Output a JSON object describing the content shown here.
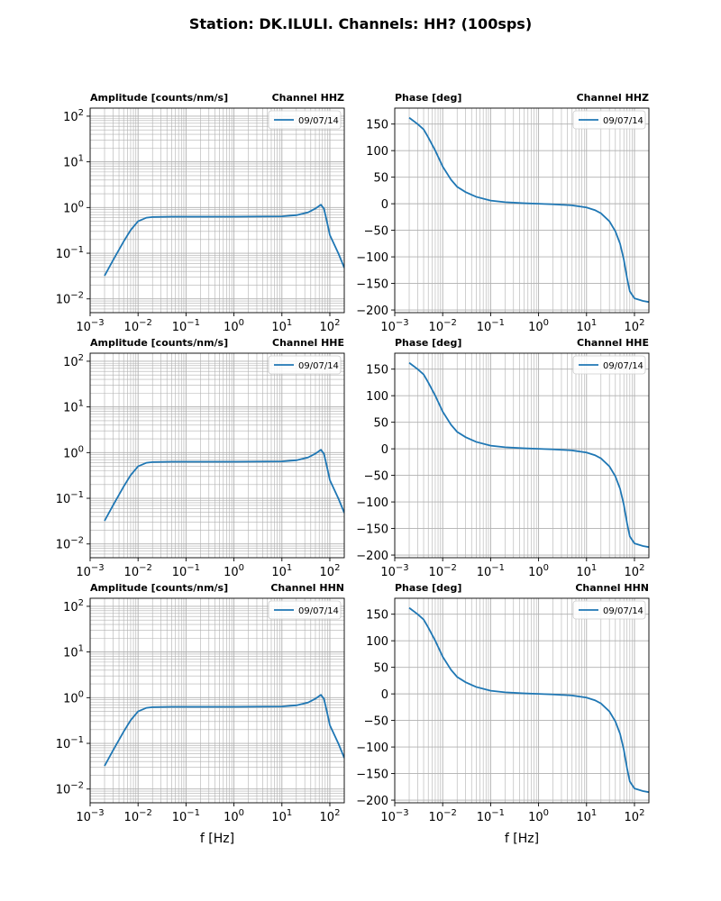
{
  "figure": {
    "title": "Station: DK.ILULI. Channels: HH? (100sps)",
    "xlabel": "f [Hz]",
    "line_color": "#1f77b4",
    "grid_color": "#b0b0b0"
  },
  "chart_data": [
    {
      "type": "line",
      "kind": "amplitude",
      "row": 0,
      "col": 0,
      "title_left": "Amplitude [counts/nm/s]",
      "title_right": "Channel HHZ",
      "xscale": "log",
      "yscale": "log",
      "xlim": [
        0.001,
        200
      ],
      "ylim": [
        0.005,
        150
      ],
      "xticks": [
        "10^-3",
        "10^-2",
        "10^-1",
        "10^0",
        "10^1",
        "10^2"
      ],
      "yticks": [
        "10^-2",
        "10^-1",
        "10^0",
        "10^1",
        "10^2"
      ],
      "legend": "09/07/14",
      "legend_loc": "upper right",
      "series": [
        {
          "name": "09/07/14",
          "x": [
            0.002,
            0.003,
            0.005,
            0.007,
            0.01,
            0.015,
            0.02,
            0.05,
            0.1,
            1,
            10,
            20,
            35,
            50,
            65,
            75,
            85,
            100,
            150,
            200
          ],
          "y": [
            0.032,
            0.07,
            0.18,
            0.32,
            0.5,
            0.6,
            0.62,
            0.63,
            0.63,
            0.63,
            0.64,
            0.68,
            0.78,
            0.95,
            1.15,
            0.95,
            0.55,
            0.25,
            0.1,
            0.048
          ]
        }
      ]
    },
    {
      "type": "line",
      "kind": "phase",
      "row": 0,
      "col": 1,
      "title_left": "Phase [deg]",
      "title_right": "Channel HHZ",
      "xscale": "log",
      "yscale": "linear",
      "xlim": [
        0.001,
        200
      ],
      "ylim": [
        -205,
        180
      ],
      "xticks": [
        "10^-3",
        "10^-2",
        "10^-1",
        "10^0",
        "10^1",
        "10^2"
      ],
      "yticks": [
        "150",
        "100",
        "50",
        "0",
        "-50",
        "-100",
        "-150",
        "-200"
      ],
      "legend": "09/07/14",
      "legend_loc": "upper right",
      "series": [
        {
          "name": "09/07/14",
          "x": [
            0.002,
            0.003,
            0.004,
            0.005,
            0.007,
            0.01,
            0.015,
            0.02,
            0.03,
            0.05,
            0.1,
            0.2,
            0.5,
            1,
            2,
            5,
            10,
            15,
            20,
            30,
            40,
            50,
            60,
            70,
            80,
            100,
            150,
            200
          ],
          "y": [
            162,
            150,
            140,
            125,
            100,
            70,
            45,
            32,
            22,
            13,
            6,
            3,
            1,
            0,
            -1,
            -3,
            -7,
            -12,
            -18,
            -33,
            -52,
            -75,
            -105,
            -140,
            -165,
            -178,
            -183,
            -185
          ]
        }
      ]
    },
    {
      "type": "line",
      "kind": "amplitude",
      "row": 1,
      "col": 0,
      "title_left": "Amplitude [counts/nm/s]",
      "title_right": "Channel HHE",
      "xscale": "log",
      "yscale": "log",
      "xlim": [
        0.001,
        200
      ],
      "ylim": [
        0.005,
        150
      ],
      "xticks": [
        "10^-3",
        "10^-2",
        "10^-1",
        "10^0",
        "10^1",
        "10^2"
      ],
      "yticks": [
        "10^-2",
        "10^-1",
        "10^0",
        "10^1",
        "10^2"
      ],
      "legend": "09/07/14",
      "legend_loc": "upper right",
      "series": [
        {
          "name": "09/07/14",
          "x": [
            0.002,
            0.003,
            0.005,
            0.007,
            0.01,
            0.015,
            0.02,
            0.05,
            0.1,
            1,
            10,
            20,
            35,
            50,
            65,
            75,
            85,
            100,
            150,
            200
          ],
          "y": [
            0.032,
            0.07,
            0.18,
            0.32,
            0.5,
            0.6,
            0.62,
            0.63,
            0.63,
            0.63,
            0.64,
            0.68,
            0.78,
            0.95,
            1.15,
            0.95,
            0.55,
            0.25,
            0.1,
            0.048
          ]
        }
      ]
    },
    {
      "type": "line",
      "kind": "phase",
      "row": 1,
      "col": 1,
      "title_left": "Phase [deg]",
      "title_right": "Channel HHE",
      "xscale": "log",
      "yscale": "linear",
      "xlim": [
        0.001,
        200
      ],
      "ylim": [
        -205,
        180
      ],
      "xticks": [
        "10^-3",
        "10^-2",
        "10^-1",
        "10^0",
        "10^1",
        "10^2"
      ],
      "yticks": [
        "150",
        "100",
        "50",
        "0",
        "-50",
        "-100",
        "-150",
        "-200"
      ],
      "legend": "09/07/14",
      "legend_loc": "upper right",
      "series": [
        {
          "name": "09/07/14",
          "x": [
            0.002,
            0.003,
            0.004,
            0.005,
            0.007,
            0.01,
            0.015,
            0.02,
            0.03,
            0.05,
            0.1,
            0.2,
            0.5,
            1,
            2,
            5,
            10,
            15,
            20,
            30,
            40,
            50,
            60,
            70,
            80,
            100,
            150,
            200
          ],
          "y": [
            162,
            150,
            140,
            125,
            100,
            70,
            45,
            32,
            22,
            13,
            6,
            3,
            1,
            0,
            -1,
            -3,
            -7,
            -12,
            -18,
            -33,
            -52,
            -75,
            -105,
            -140,
            -165,
            -178,
            -183,
            -185
          ]
        }
      ]
    },
    {
      "type": "line",
      "kind": "amplitude",
      "row": 2,
      "col": 0,
      "title_left": "Amplitude [counts/nm/s]",
      "title_right": "Channel HHN",
      "xscale": "log",
      "yscale": "log",
      "xlim": [
        0.001,
        200
      ],
      "ylim": [
        0.005,
        150
      ],
      "xticks": [
        "10^-3",
        "10^-2",
        "10^-1",
        "10^0",
        "10^1",
        "10^2"
      ],
      "yticks": [
        "10^-2",
        "10^-1",
        "10^0",
        "10^1",
        "10^2"
      ],
      "legend": "09/07/14",
      "legend_loc": "upper right",
      "series": [
        {
          "name": "09/07/14",
          "x": [
            0.002,
            0.003,
            0.005,
            0.007,
            0.01,
            0.015,
            0.02,
            0.05,
            0.1,
            1,
            10,
            20,
            35,
            50,
            65,
            75,
            85,
            100,
            150,
            200
          ],
          "y": [
            0.032,
            0.07,
            0.18,
            0.32,
            0.5,
            0.6,
            0.62,
            0.63,
            0.63,
            0.63,
            0.64,
            0.68,
            0.78,
            0.95,
            1.15,
            0.95,
            0.55,
            0.25,
            0.1,
            0.048
          ]
        }
      ]
    },
    {
      "type": "line",
      "kind": "phase",
      "row": 2,
      "col": 1,
      "title_left": "Phase [deg]",
      "title_right": "Channel HHN",
      "xscale": "log",
      "yscale": "linear",
      "xlim": [
        0.001,
        200
      ],
      "ylim": [
        -205,
        180
      ],
      "xticks": [
        "10^-3",
        "10^-2",
        "10^-1",
        "10^0",
        "10^1",
        "10^2"
      ],
      "yticks": [
        "150",
        "100",
        "50",
        "0",
        "-50",
        "-100",
        "-150",
        "-200"
      ],
      "legend": "09/07/14",
      "legend_loc": "upper right",
      "series": [
        {
          "name": "09/07/14",
          "x": [
            0.002,
            0.003,
            0.004,
            0.005,
            0.007,
            0.01,
            0.015,
            0.02,
            0.03,
            0.05,
            0.1,
            0.2,
            0.5,
            1,
            2,
            5,
            10,
            15,
            20,
            30,
            40,
            50,
            60,
            70,
            80,
            100,
            150,
            200
          ],
          "y": [
            162,
            150,
            140,
            125,
            100,
            70,
            45,
            32,
            22,
            13,
            6,
            3,
            1,
            0,
            -1,
            -3,
            -7,
            -12,
            -18,
            -33,
            -52,
            -75,
            -105,
            -140,
            -165,
            -178,
            -183,
            -185
          ]
        }
      ]
    }
  ]
}
